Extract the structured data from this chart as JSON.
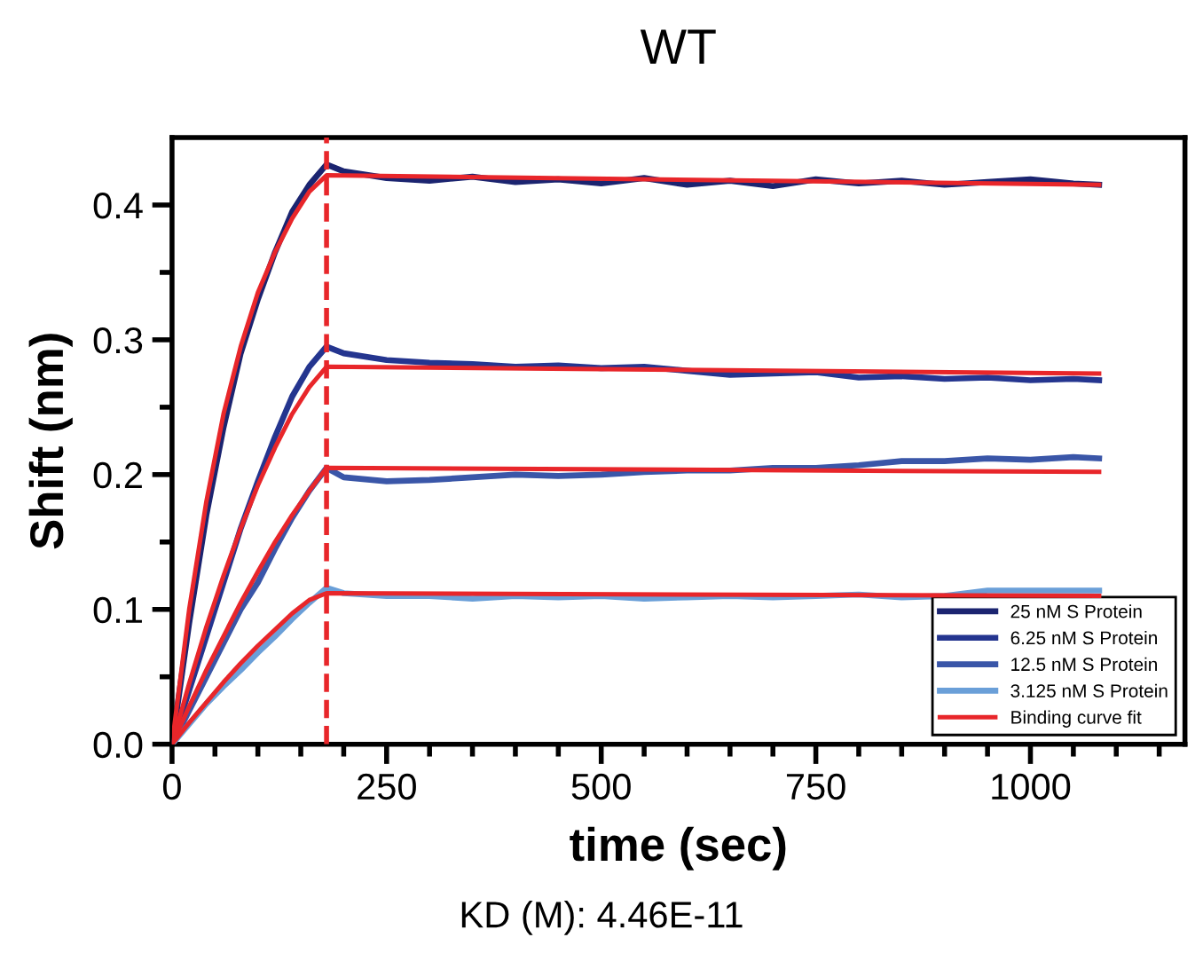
{
  "chart_data": {
    "type": "line",
    "title": "WT",
    "xlabel": "time (sec)",
    "ylabel": "Shift (nm)",
    "annotations": [
      "KD (M): 4.46E-11"
    ],
    "x": [
      0,
      20,
      40,
      60,
      80,
      100,
      120,
      140,
      160,
      180,
      200,
      250,
      300,
      350,
      400,
      450,
      500,
      550,
      600,
      650,
      700,
      750,
      800,
      850,
      900,
      950,
      1000,
      1050,
      1080
    ],
    "series": [
      {
        "name": "25 nM S Protein",
        "color": "#1b2470",
        "values": [
          0,
          0.09,
          0.17,
          0.235,
          0.29,
          0.33,
          0.365,
          0.395,
          0.415,
          0.43,
          0.425,
          0.42,
          0.418,
          0.421,
          0.417,
          0.419,
          0.416,
          0.42,
          0.415,
          0.418,
          0.414,
          0.419,
          0.416,
          0.418,
          0.415,
          0.417,
          0.419,
          0.416,
          0.415
        ]
      },
      {
        "name": "6.25 nM S Protein",
        "color": "#24358f",
        "values": [
          0,
          0.04,
          0.08,
          0.12,
          0.16,
          0.195,
          0.228,
          0.258,
          0.28,
          0.295,
          0.29,
          0.285,
          0.283,
          0.282,
          0.28,
          0.281,
          0.279,
          0.28,
          0.277,
          0.274,
          0.275,
          0.276,
          0.272,
          0.273,
          0.271,
          0.272,
          0.27,
          0.271,
          0.27
        ]
      },
      {
        "name": "12.5 nM S Protein",
        "color": "#3a56a8",
        "values": [
          0,
          0.025,
          0.05,
          0.075,
          0.1,
          0.12,
          0.145,
          0.168,
          0.188,
          0.205,
          0.198,
          0.195,
          0.196,
          0.198,
          0.2,
          0.199,
          0.2,
          0.202,
          0.203,
          0.203,
          0.205,
          0.205,
          0.207,
          0.21,
          0.21,
          0.212,
          0.211,
          0.213,
          0.212
        ]
      },
      {
        "name": "3.125 nM S Protein",
        "color": "#6a9fd8",
        "values": [
          0,
          0.015,
          0.03,
          0.043,
          0.055,
          0.068,
          0.08,
          0.093,
          0.105,
          0.116,
          0.112,
          0.11,
          0.11,
          0.108,
          0.11,
          0.109,
          0.11,
          0.108,
          0.109,
          0.11,
          0.109,
          0.11,
          0.111,
          0.109,
          0.11,
          0.114,
          0.114,
          0.114,
          0.114
        ]
      },
      {
        "name": "Binding curve fit",
        "color": "#e8262a",
        "x": [
          0,
          20,
          40,
          60,
          80,
          100,
          120,
          140,
          160,
          180,
          1080
        ],
        "values": [
          0,
          0.1,
          0.18,
          0.245,
          0.295,
          0.335,
          0.365,
          0.39,
          0.41,
          0.422,
          0.415
        ]
      },
      {
        "color": "#e8262a",
        "x": [
          0,
          20,
          40,
          60,
          80,
          100,
          120,
          140,
          160,
          180,
          1080
        ],
        "values": [
          0,
          0.045,
          0.087,
          0.125,
          0.16,
          0.192,
          0.22,
          0.245,
          0.265,
          0.28,
          0.275
        ]
      },
      {
        "color": "#e8262a",
        "x": [
          0,
          20,
          40,
          60,
          80,
          100,
          120,
          140,
          160,
          180,
          1080
        ],
        "values": [
          0,
          0.028,
          0.055,
          0.08,
          0.105,
          0.128,
          0.15,
          0.17,
          0.188,
          0.205,
          0.202
        ]
      },
      {
        "color": "#e8262a",
        "x": [
          0,
          20,
          40,
          60,
          80,
          100,
          120,
          140,
          160,
          180,
          1080
        ],
        "values": [
          0,
          0.016,
          0.031,
          0.046,
          0.06,
          0.073,
          0.085,
          0.097,
          0.107,
          0.112,
          0.11
        ]
      }
    ],
    "ref_lines": [
      {
        "axis": "x",
        "value": 180,
        "color": "#e8262a",
        "line_style": "dashed"
      }
    ],
    "xlim": [
      0,
      1180
    ],
    "xticks": [
      0,
      {
        "value": 50,
        "label": null
      },
      {
        "value": 100,
        "label": null
      },
      {
        "value": 150,
        "label": null
      },
      {
        "value": 200,
        "label": null
      },
      250,
      {
        "value": 300,
        "label": null
      },
      {
        "value": 350,
        "label": null
      },
      {
        "value": 400,
        "label": null
      },
      {
        "value": 450,
        "label": null
      },
      500,
      {
        "value": 550,
        "label": null
      },
      {
        "value": 600,
        "label": null
      },
      {
        "value": 650,
        "label": null
      },
      {
        "value": 700,
        "label": null
      },
      750,
      {
        "value": 800,
        "label": null
      },
      {
        "value": 850,
        "label": null
      },
      {
        "value": 900,
        "label": null
      },
      {
        "value": 950,
        "label": null
      },
      1000,
      {
        "value": 1050,
        "label": null
      },
      {
        "value": 1100,
        "label": null
      },
      {
        "value": 1150,
        "label": null
      }
    ],
    "ylim": [
      0,
      0.45
    ],
    "yticks": [
      {
        "value": 0,
        "label": "0.0"
      },
      {
        "value": 0.05,
        "label": null
      },
      0.1,
      {
        "value": 0.15,
        "label": null
      },
      0.2,
      {
        "value": 0.25,
        "label": null
      },
      0.3,
      {
        "value": 0.35,
        "label": null
      },
      0.4
    ],
    "grid": false,
    "legend": "bottom right",
    "marker": "none",
    "line_style": "solid"
  }
}
